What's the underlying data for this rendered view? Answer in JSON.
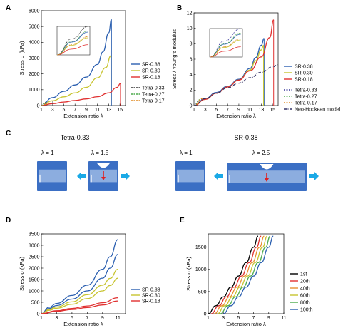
{
  "panels": {
    "A": {
      "letter": "A"
    },
    "B": {
      "letter": "B"
    },
    "C": {
      "letter": "C",
      "left_title": "Tetra-0.33",
      "right_title": "SR-0.38",
      "labels": [
        "λ = 1",
        "λ = 1.5",
        "λ = 1",
        "λ = 2.5"
      ],
      "colors": {
        "arrow": "#1aa9e6",
        "gel": "#3b6fc4",
        "crack": "#e02020"
      }
    },
    "D": {
      "letter": "D"
    },
    "E": {
      "letter": "E"
    }
  },
  "chart_data": [
    {
      "id": "A",
      "type": "line",
      "xlabel": "Extension ratio λ",
      "ylabel": "Stress σ (kPa)",
      "xlim": [
        1,
        16
      ],
      "ylim": [
        0,
        6000
      ],
      "xticks": [
        1,
        3,
        5,
        7,
        9,
        11,
        13,
        15
      ],
      "yticks": [
        0,
        1000,
        2000,
        3000,
        4000,
        5000,
        6000
      ],
      "series": [
        {
          "name": "SR-0.38",
          "color": "#2b5fb0",
          "x": [
            1,
            3,
            5,
            7,
            9,
            11,
            12,
            13,
            13.5
          ],
          "y": [
            0,
            500,
            900,
            1300,
            1800,
            2600,
            3400,
            4600,
            5450
          ]
        },
        {
          "name": "SR-0.30",
          "color": "#c8c430",
          "x": [
            1,
            3,
            5,
            7,
            9,
            11,
            12.5,
            13.4
          ],
          "y": [
            0,
            300,
            550,
            800,
            1150,
            1750,
            2400,
            3150
          ]
        },
        {
          "name": "SR-0.18",
          "color": "#e03030",
          "x": [
            1,
            3,
            5,
            7,
            9,
            11,
            13,
            14.5,
            15.1
          ],
          "y": [
            0,
            120,
            220,
            320,
            420,
            560,
            800,
            1150,
            1400
          ]
        },
        {
          "name": "Tetra-0.33",
          "color": "#333333",
          "dash": true,
          "x": [
            1,
            1.5,
            2
          ],
          "y": [
            0,
            150,
            250
          ]
        },
        {
          "name": "Tetra-0.27",
          "color": "#4caa4c",
          "dash": true,
          "x": [
            1,
            1.5,
            2.2
          ],
          "y": [
            0,
            120,
            210
          ]
        },
        {
          "name": "Tetra-0.17",
          "color": "#e08a20",
          "dash": true,
          "x": [
            1,
            1.6,
            2.5
          ],
          "y": [
            0,
            90,
            160
          ]
        }
      ]
    },
    {
      "id": "B",
      "type": "line",
      "xlabel": "Extension ratio λ",
      "ylabel": "Stress / Young's modulus",
      "xlim": [
        1,
        16
      ],
      "ylim": [
        0,
        12
      ],
      "xticks": [
        1,
        3,
        5,
        7,
        9,
        11,
        13,
        15
      ],
      "yticks": [
        0,
        2,
        4,
        6,
        8,
        10,
        12
      ],
      "series": [
        {
          "name": "SR-0.38",
          "color": "#2b5fb0",
          "x": [
            1,
            3,
            5,
            7,
            9,
            11,
            12,
            13,
            13.5
          ],
          "y": [
            0,
            0.9,
            1.7,
            2.5,
            3.4,
            4.8,
            6.2,
            7.8,
            8.7
          ]
        },
        {
          "name": "SR-0.30",
          "color": "#c8c430",
          "x": [
            1,
            3,
            5,
            7,
            9,
            11,
            12,
            13,
            13.4
          ],
          "y": [
            0,
            0.8,
            1.6,
            2.4,
            3.3,
            4.6,
            5.8,
            7.2,
            7.8
          ]
        },
        {
          "name": "SR-0.18",
          "color": "#e03030",
          "x": [
            1,
            3,
            5,
            7,
            9,
            11,
            13,
            14.5,
            15.2
          ],
          "y": [
            0,
            0.8,
            1.6,
            2.4,
            3.3,
            4.5,
            6.3,
            8.8,
            11.1
          ]
        },
        {
          "name": "Tetra-0.33",
          "color": "#333399",
          "dash": true,
          "x": [
            1,
            2
          ],
          "y": [
            0,
            0.7
          ]
        },
        {
          "name": "Tetra-0.27",
          "color": "#4caa4c",
          "dash": true,
          "x": [
            1,
            2.2
          ],
          "y": [
            0,
            0.8
          ]
        },
        {
          "name": "Tetra-0.17",
          "color": "#e08a20",
          "dash": true,
          "x": [
            1,
            2.5
          ],
          "y": [
            0,
            0.9
          ]
        },
        {
          "name": "Neo-Hookean model",
          "color": "#333366",
          "dashdot": true,
          "x": [
            1,
            3,
            5,
            7,
            9,
            11,
            13,
            15,
            16
          ],
          "y": [
            0,
            0.9,
            1.6,
            2.3,
            2.9,
            3.6,
            4.3,
            5.0,
            5.3
          ]
        }
      ]
    },
    {
      "id": "D",
      "type": "line",
      "xlabel": "Extension ratio λ",
      "ylabel": "Stress σ (kPa)",
      "xlim": [
        1,
        12
      ],
      "ylim": [
        0,
        3500
      ],
      "xticks": [
        1,
        3,
        5,
        7,
        9,
        11
      ],
      "yticks": [
        0,
        500,
        1000,
        1500,
        2000,
        2500,
        3000,
        3500
      ],
      "series": [
        {
          "name": "SR-0.38",
          "color": "#2b5fb0",
          "x": [
            1,
            2,
            3,
            5,
            7,
            9,
            10,
            11
          ],
          "y": [
            0,
            280,
            450,
            800,
            1250,
            1950,
            2500,
            3250
          ]
        },
        {
          "name": "SR-0.30",
          "color": "#c8c430",
          "x": [
            1,
            2,
            3,
            5,
            7,
            9,
            10,
            11
          ],
          "y": [
            0,
            180,
            300,
            520,
            830,
            1250,
            1550,
            1950
          ]
        },
        {
          "name": "SR-0.18",
          "color": "#e03030",
          "x": [
            1,
            3,
            5,
            7,
            9,
            11
          ],
          "y": [
            0,
            130,
            230,
            340,
            480,
            700
          ]
        }
      ]
    },
    {
      "id": "E",
      "type": "line",
      "xlabel": "Extension ratio λ",
      "ylabel": "Stress σ (kPa)",
      "xlim": [
        1,
        11
      ],
      "ylim": [
        0,
        1800
      ],
      "xticks": [
        1,
        3,
        5,
        7,
        9,
        11
      ],
      "yticks": [
        0,
        500,
        1000,
        1500
      ],
      "series": [
        {
          "name": "1st",
          "color": "#000000",
          "offset": 0
        },
        {
          "name": "20th",
          "color": "#e03030",
          "offset": 0.4
        },
        {
          "name": "40th",
          "color": "#e89030",
          "offset": 0.8
        },
        {
          "name": "60th",
          "color": "#c8c430",
          "offset": 1.2
        },
        {
          "name": "80th",
          "color": "#4caa4c",
          "offset": 1.6
        },
        {
          "name": "100th",
          "color": "#2b5fb0",
          "offset": 2.0
        }
      ]
    }
  ]
}
